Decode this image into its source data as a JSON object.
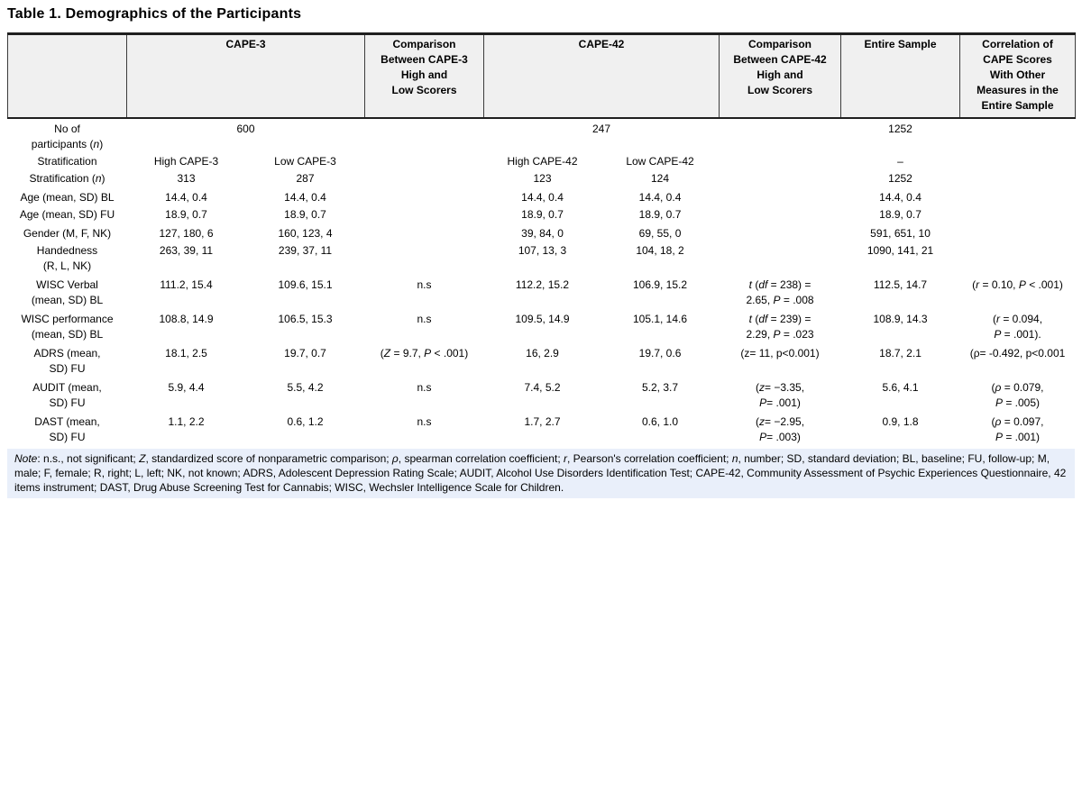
{
  "title": "Table 1. Demographics of the Participants",
  "colors": {
    "header_bg": "#f0f0f0",
    "note_bg": "#e9effa",
    "border": "#1f1f1f",
    "text": "#000000",
    "page_bg": "#ffffff"
  },
  "table": {
    "header": {
      "blank": "",
      "cape3": "CAPE-3",
      "cmp3": "Comparison\nBetween CAPE-3\nHigh and\nLow Scorers",
      "cape42": "CAPE-42",
      "cmp42": "Comparison\nBetween CAPE-42\nHigh and\nLow Scorers",
      "entire": "Entire Sample",
      "correlation": "Correlation of\nCAPE Scores\nWith Other\nMeasures in the\nEntire Sample"
    },
    "rows": [
      {
        "label": "No of\nparticipants (*n*)",
        "cape3_span": "600",
        "cmp3": "",
        "cape42_span": "247",
        "cmp42": "",
        "entire": "1252",
        "corr": ""
      },
      {
        "label": "Stratification",
        "hi3": "High CAPE-3",
        "lo3": "Low CAPE-3",
        "cmp3": "",
        "hi42": "High CAPE-42",
        "lo42": "Low CAPE-42",
        "cmp42": "",
        "entire": "–",
        "corr": ""
      },
      {
        "label": "Stratification (*n*)",
        "hi3": "313",
        "lo3": "287",
        "cmp3": "",
        "hi42": "123",
        "lo42": "124",
        "cmp42": "",
        "entire": "1252",
        "corr": ""
      },
      {
        "label": "Age (mean, SD) BL",
        "hi3": "14.4, 0.4",
        "lo3": "14.4, 0.4",
        "cmp3": "",
        "hi42": "14.4, 0.4",
        "lo42": "14.4, 0.4",
        "cmp42": "",
        "entire": "14.4, 0.4",
        "corr": ""
      },
      {
        "label": "Age (mean, SD) FU",
        "hi3": "18.9, 0.7",
        "lo3": "18.9, 0.7",
        "cmp3": "",
        "hi42": "18.9, 0.7",
        "lo42": "18.9, 0.7",
        "cmp42": "",
        "entire": "18.9, 0.7",
        "corr": ""
      },
      {
        "label": "Gender (M, F, NK)",
        "hi3": "127, 180, 6",
        "lo3": "160, 123, 4",
        "cmp3": "",
        "hi42": "39, 84, 0",
        "lo42": "69, 55, 0",
        "cmp42": "",
        "entire": "591, 651, 10",
        "corr": ""
      },
      {
        "label": "Handedness\n(R, L, NK)",
        "hi3": "263, 39, 11",
        "lo3": "239, 37, 11",
        "cmp3": "",
        "hi42": "107, 13, 3",
        "lo42": "104, 18, 2",
        "cmp42": "",
        "entire": "1090, 141, 21",
        "corr": ""
      },
      {
        "label": "WISC Verbal\n(mean, SD) BL",
        "hi3": "111.2, 15.4",
        "lo3": "109.6, 15.1",
        "cmp3": "n.s",
        "hi42": "112.2, 15.2",
        "lo42": "106.9, 15.2",
        "cmp42": "*t* (*df* = 238) =\n2.65, *P* = .008",
        "entire": "112.5, 14.7",
        "corr": "(*r* = 0.10, *P* < .001)"
      },
      {
        "label": "WISC performance\n(mean, SD) BL",
        "hi3": "108.8, 14.9",
        "lo3": "106.5, 15.3",
        "cmp3": "n.s",
        "hi42": "109.5, 14.9",
        "lo42": "105.1, 14.6",
        "cmp42": "*t* (*df* = 239) =\n2.29, *P* = .023",
        "entire": "108.9, 14.3",
        "corr": "(*r* = 0.094,\n*P* = .001)."
      },
      {
        "label": "ADRS (mean,\nSD) FU",
        "hi3": "18.1, 2.5",
        "lo3": "19.7, 0.7",
        "cmp3": "(*Z* = 9.7, *P* < .001)",
        "hi42": "16, 2.9",
        "lo42": "19.7, 0.6",
        "cmp42": "(z= 11, p<0.001)",
        "entire": "18.7, 2.1",
        "corr": "(ρ= -0.492, p<0.001"
      },
      {
        "label": "AUDIT (mean,\nSD) FU",
        "hi3": "5.9, 4.4",
        "lo3": "5.5, 4.2",
        "cmp3": "n.s",
        "hi42": "7.4, 5.2",
        "lo42": "5.2, 3.7",
        "cmp42": "(*z*= −3.35,\n*P*= .001)",
        "entire": "5.6, 4.1",
        "corr": "(*ρ* = 0.079,\n*P* = .005)"
      },
      {
        "label": "DAST (mean,\nSD) FU",
        "hi3": "1.1, 2.2",
        "lo3": "0.6, 1.2",
        "cmp3": "n.s",
        "hi42": "1.7, 2.7",
        "lo42": "0.6, 1.0",
        "cmp42": "(*z*= −2.95,\n*P*= .003)",
        "entire": "0.9, 1.8",
        "corr": "(*ρ* = 0.097,\n*P* = .001)"
      }
    ]
  },
  "note": "*Note*: n.s., not significant; *Z*, standardized score of nonparametric comparison; *ρ*, spearman correlation coefficient; *r*, Pearson's correlation coefficient; *n*, number; SD, standard deviation; BL, baseline; FU, follow-up; M, male; F, female; R, right; L, left; NK, not known; ADRS, Adolescent Depression Rating Scale; AUDIT, Alcohol Use Disorders Identification Test; CAPE-42, Community Assessment of Psychic Experiences Questionnaire, 42 items instrument; DAST, Drug Abuse Screening Test for Cannabis; WISC, Wechsler Intelligence Scale for Children."
}
